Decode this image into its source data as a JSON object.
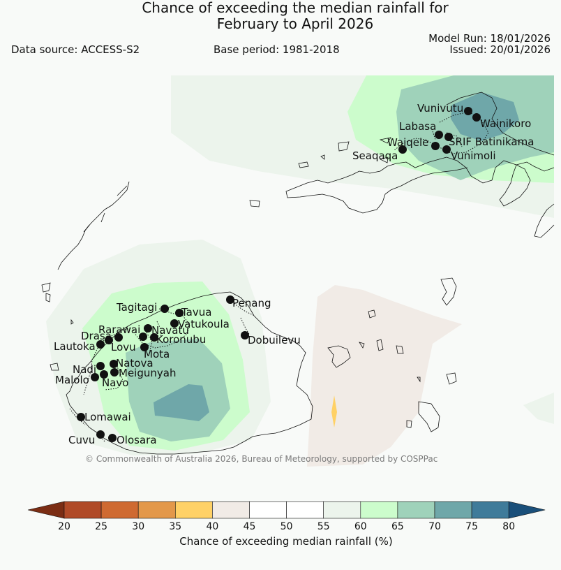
{
  "header": {
    "title_line1": "Chance of exceeding the median rainfall for",
    "title_line2": "February to April 2026",
    "data_source": "Data source: ACCESS-S2",
    "base_period": "Base period: 1981-2018",
    "model_run": "Model Run: 18/01/2026",
    "issued": "Issued: 20/01/2026"
  },
  "map": {
    "stations": [
      "Vunivutu",
      "Wainikoro",
      "Labasa",
      "Waiqele",
      "SRIF Batinikama",
      "Seaqaqa",
      "Vunimoli",
      "Penang",
      "Tagitagi",
      "Tavua",
      "Vatukoula",
      "Rarawai",
      "Navatu",
      "Drasa",
      "Koronubu",
      "Lautoka",
      "Lovu",
      "Mota",
      "Dobuilevu",
      "Nadi",
      "Natova",
      "Meigunyah",
      "Malolo",
      "Navo",
      "Lomawai",
      "Cuvu",
      "Olosara"
    ],
    "copyright": "© Commonwealth of Australia 2026, Bureau of Meteorology, supported by COSPPac"
  },
  "colorbar": {
    "ticks": [
      "20",
      "25",
      "30",
      "35",
      "40",
      "45",
      "50",
      "55",
      "60",
      "65",
      "70",
      "75",
      "80"
    ],
    "colors": [
      "#7b2d14",
      "#b04a27",
      "#cf6a31",
      "#e3984a",
      "#ffd166",
      "#f1ebe6",
      "#ffffff",
      "#ffffff",
      "#ecf4ec",
      "#ccfccc",
      "#9fd2ba",
      "#6fa7a9",
      "#3f7b9a",
      "#1a4f7a"
    ],
    "title": "Chance of exceeding median rainfall (%)"
  }
}
